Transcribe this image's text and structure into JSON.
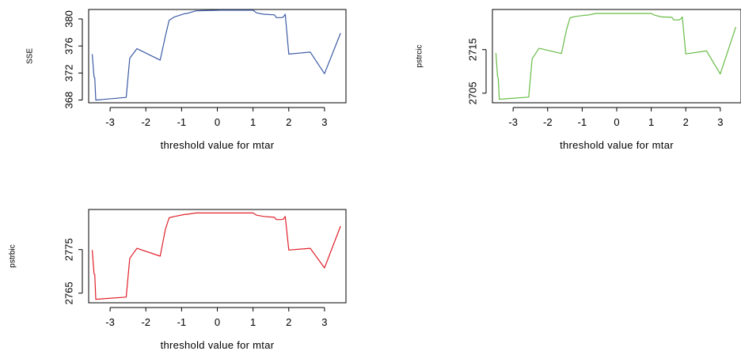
{
  "chart_data": [
    {
      "type": "line",
      "xlabel": "threshold value for mtar",
      "ylabel": "SSE",
      "color": "#3b5ba5",
      "xlim": [
        -3.6,
        3.6
      ],
      "ylim": [
        367.6,
        381.4
      ],
      "x_ticks": [
        -3,
        -2,
        -1,
        0,
        1,
        2,
        3
      ],
      "x_tick_labels": [
        "-3",
        "-2",
        "-1",
        "0",
        "1",
        "2",
        "3"
      ],
      "y_ticks": [
        368,
        372,
        376,
        380
      ],
      "y_tick_labels": [
        "368",
        "372",
        "376",
        "380"
      ],
      "series": [
        {
          "x": [
            -3.5,
            -3.45,
            -3.43,
            -3.4,
            -2.55,
            -2.45,
            -2.25,
            -1.6,
            -1.45,
            -1.35,
            -1.2,
            -0.9,
            -0.85,
            -0.6,
            0.1,
            1.0,
            1.1,
            1.3,
            1.6,
            1.65,
            1.8,
            1.85,
            1.9,
            2.0,
            2.6,
            3.0,
            3.45
          ],
          "y": [
            374.8,
            371.4,
            371.3,
            368.0,
            368.4,
            374.2,
            375.6,
            373.9,
            377.5,
            379.8,
            380.3,
            380.8,
            380.8,
            381.2,
            381.3,
            381.3,
            380.9,
            380.7,
            380.6,
            380.2,
            380.2,
            380.3,
            380.7,
            374.8,
            375.1,
            371.9,
            377.9
          ]
        }
      ]
    },
    {
      "type": "line",
      "xlabel": "threshold value for mtar",
      "ylabel": "pstrcic",
      "color": "#66bb44",
      "xlim": [
        -3.6,
        3.6
      ],
      "ylim": [
        2702.8,
        2724.2
      ],
      "x_ticks": [
        -3,
        -2,
        -1,
        0,
        1,
        2,
        3
      ],
      "x_tick_labels": [
        "-3",
        "-2",
        "-1",
        "0",
        "1",
        "2",
        "3"
      ],
      "y_ticks": [
        2705,
        2715
      ],
      "y_tick_labels": [
        "2705",
        "2715"
      ],
      "series": [
        {
          "x": [
            -3.5,
            -3.45,
            -3.43,
            -3.4,
            -2.55,
            -2.45,
            -2.25,
            -1.6,
            -1.45,
            -1.35,
            -1.2,
            -0.9,
            -0.85,
            -0.6,
            0.1,
            1.0,
            1.1,
            1.3,
            1.6,
            1.65,
            1.8,
            1.85,
            1.9,
            2.0,
            2.6,
            3.0,
            3.45
          ],
          "y": [
            2714.2,
            2708.8,
            2708.5,
            2703.6,
            2704.1,
            2712.9,
            2715.3,
            2714.1,
            2719.7,
            2722.3,
            2722.6,
            2722.9,
            2722.9,
            2723.3,
            2723.3,
            2723.3,
            2722.9,
            2722.5,
            2722.4,
            2721.8,
            2721.8,
            2722.0,
            2722.5,
            2714.0,
            2714.7,
            2709.4,
            2720.2
          ]
        }
      ]
    },
    {
      "type": "line",
      "xlabel": "threshold value for mtar",
      "ylabel": "pstrbic",
      "color": "#e0202a",
      "xlim": [
        -3.6,
        3.6
      ],
      "ylim": [
        2762.8,
        2784.2
      ],
      "x_ticks": [
        -3,
        -2,
        -1,
        0,
        1,
        2,
        3
      ],
      "x_tick_labels": [
        "-3",
        "-2",
        "-1",
        "0",
        "1",
        "2",
        "3"
      ],
      "y_ticks": [
        2765,
        2775
      ],
      "y_tick_labels": [
        "2765",
        "2775"
      ],
      "series": [
        {
          "x": [
            -3.5,
            -3.45,
            -3.43,
            -3.4,
            -2.55,
            -2.45,
            -2.25,
            -1.6,
            -1.45,
            -1.35,
            -1.2,
            -0.9,
            -0.85,
            -0.6,
            0.1,
            1.0,
            1.1,
            1.3,
            1.6,
            1.65,
            1.8,
            1.85,
            1.9,
            2.0,
            2.6,
            3.0,
            3.45
          ],
          "y": [
            2774.9,
            2769.4,
            2769.3,
            2763.6,
            2764.1,
            2773.0,
            2775.3,
            2773.5,
            2779.7,
            2782.3,
            2782.6,
            2783.1,
            2783.1,
            2783.4,
            2783.4,
            2783.4,
            2782.9,
            2782.6,
            2782.4,
            2781.9,
            2781.9,
            2782.0,
            2782.6,
            2774.9,
            2775.3,
            2770.8,
            2780.4
          ]
        }
      ]
    }
  ]
}
